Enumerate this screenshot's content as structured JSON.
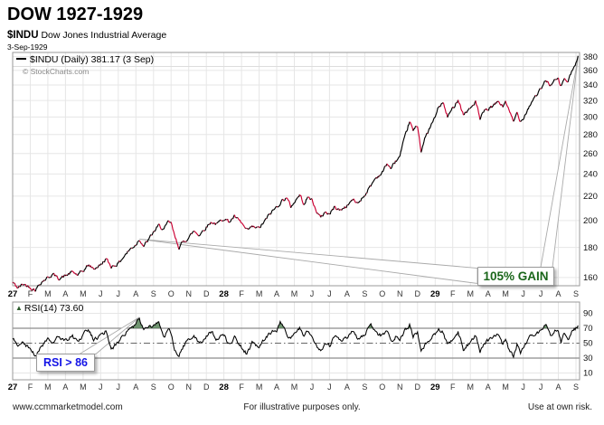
{
  "header": {
    "title": "DOW 1927-1929",
    "symbol": "$INDU",
    "symbol_desc": "Dow Jones Industrial Average",
    "date": "3-Sep-1929"
  },
  "price_panel": {
    "legend": "$INDU (Daily) 381.17 (3 Sep)",
    "copyright": "© StockCharts.com",
    "gain_callout": "105% GAIN"
  },
  "rsi_panel": {
    "legend": "RSI(14) 73.60",
    "callout": "RSI > 86"
  },
  "x_axis": {
    "labels": [
      "27",
      "F",
      "M",
      "A",
      "M",
      "J",
      "J",
      "A",
      "S",
      "O",
      "N",
      "D",
      "28",
      "F",
      "M",
      "A",
      "M",
      "J",
      "J",
      "A",
      "S",
      "O",
      "N",
      "D",
      "29",
      "F",
      "M",
      "A",
      "M",
      "J",
      "J",
      "A",
      "S"
    ]
  },
  "footer": {
    "left": "www.ccmmarketmodel.com",
    "center": "For illustrative purposes only.",
    "right": "Use at own risk."
  },
  "colors": {
    "price_up": "#000000",
    "price_down": "#cc0033",
    "rsi_line": "#000000",
    "rsi_fill": "#4c7a4e",
    "gain_text": "#1a661a",
    "signal_text": "#1414e6",
    "grid": "#e6e6e6",
    "band_line": "#8c8c8c",
    "mid_line": "#666666",
    "border": "#999999",
    "ribbon_edge": "#aaaaaa"
  },
  "chart_data": [
    {
      "type": "line",
      "title": "$INDU (Daily) Dow Jones Industrial Average",
      "legend": "$INDU (Daily) 381.17 (3 Sep)",
      "scale": "log",
      "last_value": 381.17,
      "last_date": "3-Sep-1929",
      "ylim": [
        151,
        386
      ],
      "y_ticks": [
        380,
        360,
        340,
        320,
        300,
        280,
        260,
        240,
        220,
        200,
        180,
        160
      ],
      "x_unit": "months from Jan-1927",
      "gain_note": "105% GAIN from Aug-1927 signal (~186) to 3-Sep-1929 peak (381.17)",
      "anchors": [
        [
          0,
          157
        ],
        [
          0.3,
          153.5
        ],
        [
          0.6,
          156
        ],
        [
          1,
          154
        ],
        [
          1.3,
          152.5
        ],
        [
          1.6,
          157
        ],
        [
          2,
          160
        ],
        [
          2.3,
          162
        ],
        [
          2.6,
          159.5
        ],
        [
          3,
          161
        ],
        [
          3.4,
          163.5
        ],
        [
          3.7,
          161.5
        ],
        [
          4,
          164
        ],
        [
          4.3,
          168
        ],
        [
          4.6,
          165.5
        ],
        [
          5,
          168
        ],
        [
          5.3,
          172
        ],
        [
          5.6,
          167
        ],
        [
          6,
          169
        ],
        [
          6.4,
          175
        ],
        [
          6.7,
          179
        ],
        [
          7,
          182
        ],
        [
          7.2,
          186
        ],
        [
          7.45,
          181
        ],
        [
          7.7,
          185
        ],
        [
          8,
          191
        ],
        [
          8.3,
          196
        ],
        [
          8.6,
          193
        ],
        [
          8.85,
          199
        ],
        [
          9,
          198
        ],
        [
          9.2,
          188
        ],
        [
          9.45,
          180
        ],
        [
          9.7,
          184
        ],
        [
          10,
          187
        ],
        [
          10.3,
          192
        ],
        [
          10.6,
          189
        ],
        [
          11,
          195
        ],
        [
          11.3,
          199
        ],
        [
          11.6,
          197
        ],
        [
          12,
          202
        ],
        [
          12.3,
          199
        ],
        [
          12.6,
          203
        ],
        [
          13,
          198
        ],
        [
          13.3,
          192
        ],
        [
          13.6,
          195
        ],
        [
          14,
          194
        ],
        [
          14.3,
          199
        ],
        [
          14.6,
          205
        ],
        [
          15,
          211
        ],
        [
          15.3,
          216
        ],
        [
          15.55,
          219
        ],
        [
          15.8,
          211
        ],
        [
          16,
          215
        ],
        [
          16.3,
          221
        ],
        [
          16.55,
          214
        ],
        [
          16.8,
          219
        ],
        [
          17,
          217
        ],
        [
          17.2,
          209
        ],
        [
          17.5,
          202
        ],
        [
          17.75,
          207
        ],
        [
          18,
          205
        ],
        [
          18.3,
          211
        ],
        [
          18.6,
          208
        ],
        [
          19,
          212
        ],
        [
          19.3,
          217
        ],
        [
          19.6,
          214
        ],
        [
          20,
          221
        ],
        [
          20.3,
          228
        ],
        [
          20.6,
          236
        ],
        [
          21,
          241
        ],
        [
          21.25,
          250
        ],
        [
          21.5,
          245
        ],
        [
          21.75,
          252
        ],
        [
          22,
          257
        ],
        [
          22.3,
          278
        ],
        [
          22.55,
          295
        ],
        [
          22.75,
          284
        ],
        [
          23,
          290
        ],
        [
          23.2,
          263
        ],
        [
          23.45,
          277
        ],
        [
          23.7,
          287
        ],
        [
          24,
          300
        ],
        [
          24.2,
          312
        ],
        [
          24.45,
          317
        ],
        [
          24.7,
          300
        ],
        [
          25,
          310
        ],
        [
          25.3,
          322
        ],
        [
          25.6,
          303
        ],
        [
          26,
          310
        ],
        [
          26.3,
          319
        ],
        [
          26.55,
          297
        ],
        [
          26.8,
          307
        ],
        [
          27,
          309
        ],
        [
          27.3,
          313
        ],
        [
          27.6,
          319
        ],
        [
          27.85,
          312
        ],
        [
          28,
          320
        ],
        [
          28.2,
          307
        ],
        [
          28.45,
          294
        ],
        [
          28.65,
          305
        ],
        [
          28.85,
          295
        ],
        [
          29,
          299
        ],
        [
          29.3,
          311
        ],
        [
          29.6,
          323
        ],
        [
          30,
          334
        ],
        [
          30.3,
          346
        ],
        [
          30.55,
          340
        ],
        [
          30.8,
          346
        ],
        [
          31,
          347
        ],
        [
          31.15,
          338
        ],
        [
          31.35,
          349
        ],
        [
          31.55,
          344
        ],
        [
          31.75,
          358
        ],
        [
          32,
          369
        ],
        [
          32.12,
          381.17
        ]
      ]
    },
    {
      "type": "line",
      "title": "RSI(14)",
      "last_value": 73.6,
      "ylim": [
        0,
        100
      ],
      "y_ticks": [
        90,
        70,
        50,
        30,
        10
      ],
      "overbought": 70,
      "oversold": 30,
      "midline": 50,
      "signal_note": "RSI > 86 in Aug-1927; areas above 70 shaded green",
      "anchors": [
        [
          0,
          55
        ],
        [
          0.3,
          47
        ],
        [
          0.6,
          52
        ],
        [
          1,
          40
        ],
        [
          1.3,
          34
        ],
        [
          1.6,
          46
        ],
        [
          2,
          57
        ],
        [
          2.3,
          50
        ],
        [
          2.6,
          60
        ],
        [
          3,
          54
        ],
        [
          3.4,
          59
        ],
        [
          3.7,
          50
        ],
        [
          4,
          62
        ],
        [
          4.3,
          68
        ],
        [
          4.6,
          54
        ],
        [
          5,
          60
        ],
        [
          5.3,
          66
        ],
        [
          5.6,
          42
        ],
        [
          6,
          52
        ],
        [
          6.4,
          63
        ],
        [
          6.7,
          70
        ],
        [
          7,
          76
        ],
        [
          7.2,
          86
        ],
        [
          7.45,
          66
        ],
        [
          7.7,
          72
        ],
        [
          8,
          74
        ],
        [
          8.3,
          77
        ],
        [
          8.6,
          58
        ],
        [
          8.85,
          70
        ],
        [
          9,
          64
        ],
        [
          9.2,
          42
        ],
        [
          9.45,
          33
        ],
        [
          9.7,
          47
        ],
        [
          10,
          54
        ],
        [
          10.3,
          62
        ],
        [
          10.6,
          50
        ],
        [
          11,
          60
        ],
        [
          11.3,
          65
        ],
        [
          11.6,
          55
        ],
        [
          12,
          62
        ],
        [
          12.3,
          48
        ],
        [
          12.6,
          58
        ],
        [
          13,
          44
        ],
        [
          13.3,
          36
        ],
        [
          13.6,
          50
        ],
        [
          14,
          45
        ],
        [
          14.3,
          56
        ],
        [
          14.6,
          63
        ],
        [
          15,
          68
        ],
        [
          15.2,
          78
        ],
        [
          15.5,
          65
        ],
        [
          15.8,
          55
        ],
        [
          16,
          63
        ],
        [
          16.3,
          72
        ],
        [
          16.55,
          60
        ],
        [
          16.8,
          68
        ],
        [
          17,
          62
        ],
        [
          17.2,
          50
        ],
        [
          17.5,
          38
        ],
        [
          17.75,
          52
        ],
        [
          18,
          46
        ],
        [
          18.3,
          60
        ],
        [
          18.6,
          52
        ],
        [
          19,
          58
        ],
        [
          19.3,
          66
        ],
        [
          19.6,
          56
        ],
        [
          20,
          63
        ],
        [
          20.35,
          73
        ],
        [
          20.6,
          64
        ],
        [
          21,
          60
        ],
        [
          21.25,
          68
        ],
        [
          21.5,
          50
        ],
        [
          21.75,
          58
        ],
        [
          22,
          56
        ],
        [
          22.3,
          68
        ],
        [
          22.55,
          74
        ],
        [
          22.75,
          60
        ],
        [
          23,
          64
        ],
        [
          23.2,
          36
        ],
        [
          23.45,
          48
        ],
        [
          23.7,
          56
        ],
        [
          24,
          62
        ],
        [
          24.2,
          68
        ],
        [
          24.45,
          66
        ],
        [
          24.7,
          46
        ],
        [
          25,
          56
        ],
        [
          25.3,
          65
        ],
        [
          25.6,
          42
        ],
        [
          26,
          52
        ],
        [
          26.3,
          60
        ],
        [
          26.55,
          38
        ],
        [
          26.8,
          50
        ],
        [
          27,
          54
        ],
        [
          27.3,
          58
        ],
        [
          27.6,
          62
        ],
        [
          27.85,
          48
        ],
        [
          28,
          56
        ],
        [
          28.2,
          42
        ],
        [
          28.45,
          31
        ],
        [
          28.65,
          48
        ],
        [
          28.85,
          38
        ],
        [
          29,
          44
        ],
        [
          29.3,
          56
        ],
        [
          29.6,
          62
        ],
        [
          30,
          66
        ],
        [
          30.3,
          74
        ],
        [
          30.55,
          62
        ],
        [
          30.8,
          66
        ],
        [
          31,
          64
        ],
        [
          31.15,
          50
        ],
        [
          31.35,
          63
        ],
        [
          31.55,
          55
        ],
        [
          31.75,
          66
        ],
        [
          32,
          70
        ],
        [
          32.12,
          73.6
        ]
      ]
    }
  ]
}
